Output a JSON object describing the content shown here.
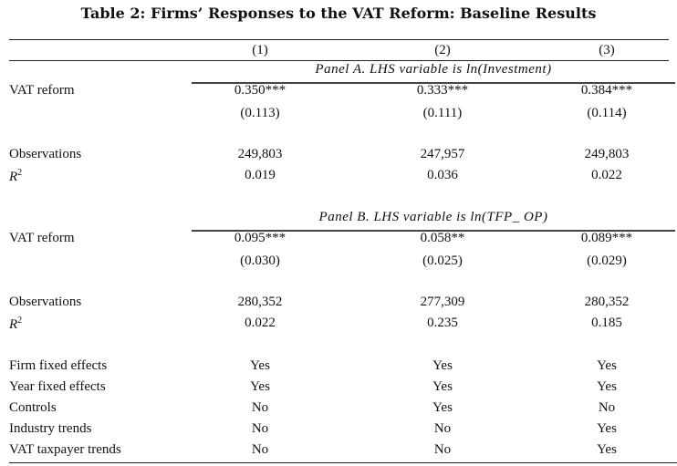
{
  "title": "Table 2: Firms’ Responses to the VAT Reform: Baseline Results",
  "columns": [
    "(1)",
    "(2)",
    "(3)"
  ],
  "panels": [
    {
      "label": "Panel A. LHS variable is ln(Investment)",
      "coef_label": "VAT reform",
      "coef": [
        "0.350***",
        "0.333***",
        "0.384***"
      ],
      "se": [
        "(0.113)",
        "(0.111)",
        "(0.114)"
      ],
      "obs_label": "Observations",
      "obs": [
        "249,803",
        "247,957",
        "249,803"
      ],
      "r2_label": "R",
      "r2_sup": "2",
      "r2": [
        "0.019",
        "0.036",
        "0.022"
      ]
    },
    {
      "label": "Panel B. LHS variable is ln(TFP_ OP)",
      "coef_label": "VAT reform",
      "coef": [
        "0.095***",
        "0.058**",
        "0.089***"
      ],
      "se": [
        "(0.030)",
        "(0.025)",
        "(0.029)"
      ],
      "obs_label": "Observations",
      "obs": [
        "280,352",
        "277,309",
        "280,352"
      ],
      "r2_label": "R",
      "r2_sup": "2",
      "r2": [
        "0.022",
        "0.235",
        "0.185"
      ]
    }
  ],
  "controls": [
    {
      "label": "Firm fixed effects",
      "values": [
        "Yes",
        "Yes",
        "Yes"
      ]
    },
    {
      "label": "Year fixed effects",
      "values": [
        "Yes",
        "Yes",
        "Yes"
      ]
    },
    {
      "label": "Controls",
      "values": [
        "No",
        "Yes",
        "No"
      ]
    },
    {
      "label": "Industry trends",
      "values": [
        "No",
        "No",
        "Yes"
      ]
    },
    {
      "label": "VAT taxpayer trends",
      "values": [
        "No",
        "No",
        "Yes"
      ]
    }
  ]
}
